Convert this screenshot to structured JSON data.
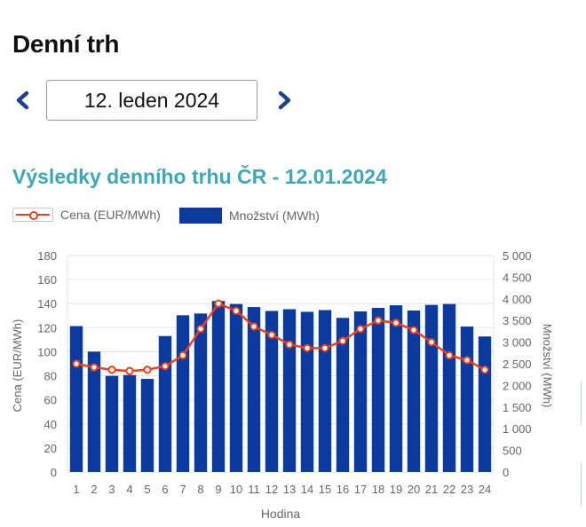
{
  "page": {
    "title": "Denní trh"
  },
  "date_picker": {
    "value": "12. leden 2024"
  },
  "chart_data": {
    "type": "bar+line",
    "title": "Výsledky denního trhu ČR - 12.01.2024",
    "xlabel": "Hodina",
    "ylabel_left": "Cena (EUR/MWh)",
    "ylabel_right": "Množství (MWh)",
    "categories": [
      "1",
      "2",
      "3",
      "4",
      "5",
      "6",
      "7",
      "8",
      "9",
      "10",
      "11",
      "12",
      "13",
      "14",
      "15",
      "16",
      "17",
      "18",
      "19",
      "20",
      "21",
      "22",
      "23",
      "24"
    ],
    "ylim_left": [
      0,
      180
    ],
    "ylim_right": [
      0,
      5000
    ],
    "yticks_left": [
      "0",
      "20",
      "40",
      "60",
      "80",
      "100",
      "120",
      "140",
      "160",
      "180"
    ],
    "yticks_right": [
      "0",
      "500",
      "1 000",
      "1 500",
      "2 000",
      "2 500",
      "3 000",
      "3 500",
      "4 000",
      "4 500",
      "5 000"
    ],
    "series": [
      {
        "name": "Množství (MWh)",
        "type": "bar",
        "axis": "right",
        "color": "#0a3a9e",
        "values": [
          3370,
          2780,
          2220,
          2240,
          2150,
          3140,
          3620,
          3660,
          3950,
          3880,
          3810,
          3720,
          3760,
          3700,
          3740,
          3560,
          3710,
          3790,
          3850,
          3730,
          3860,
          3880,
          3360,
          3130
        ]
      },
      {
        "name": "Cena (EUR/MWh)",
        "type": "line",
        "axis": "left",
        "color": "#e8421c",
        "values": [
          90,
          87,
          85,
          84,
          85,
          88,
          97,
          119,
          140,
          134,
          121,
          114,
          106,
          103,
          103,
          109,
          119,
          126,
          124,
          118,
          108,
          97,
          93,
          85
        ]
      }
    ],
    "grid": true,
    "legend_position": "top-left"
  }
}
